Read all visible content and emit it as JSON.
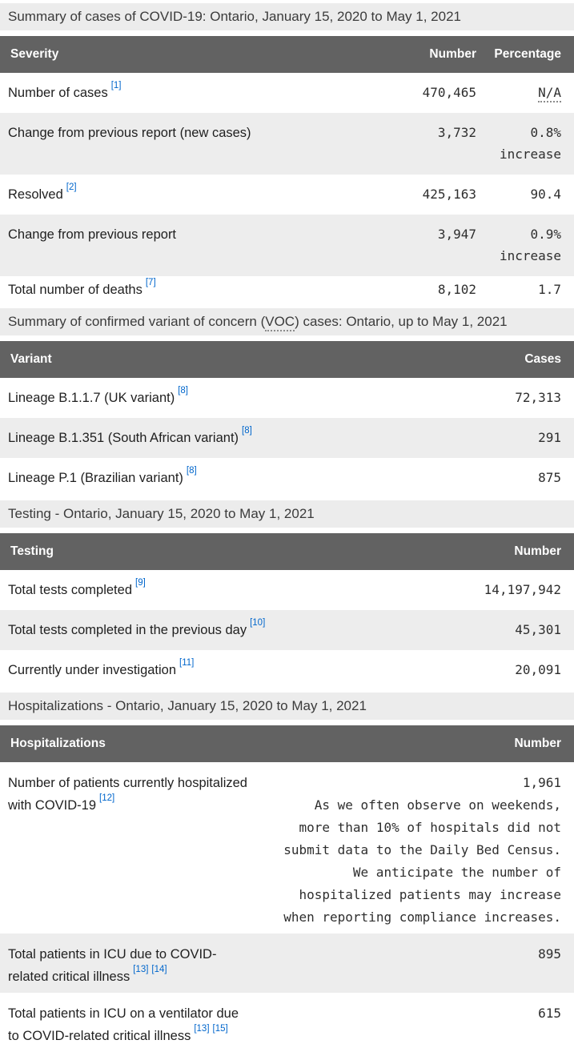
{
  "theme": {
    "link_color": "#0066cc",
    "header_bg": "#626262",
    "caption_bg": "#ececec",
    "row_alt_bg": "#ededed"
  },
  "tables": {
    "severity": {
      "caption": "Summary of cases of COVID-19: Ontario, January 15, 2020 to May 1, 2021",
      "columns": [
        "Severity",
        "Number",
        "Percentage"
      ],
      "rows": [
        {
          "label": "Number of cases",
          "refs": [
            "[1]"
          ],
          "number": "470,465",
          "pct": "N/A"
        },
        {
          "label": "Change from previous report (new cases)",
          "number": "3,732",
          "pct": "0.8%",
          "pct_note": "increase"
        },
        {
          "label": "Resolved",
          "refs": [
            "[2]"
          ],
          "number": "425,163",
          "pct": "90.4"
        },
        {
          "label": "Change from previous report",
          "number": "3,947",
          "pct": "0.9%",
          "pct_note": "increase"
        },
        {
          "label": "Total number of deaths",
          "refs": [
            "[7]"
          ],
          "number": "8,102",
          "pct": "1.7"
        }
      ]
    },
    "variants": {
      "caption_before": "Summary of confirmed variant of concern (",
      "caption_abbr": "VOC",
      "caption_after": ") cases: Ontario, up to May 1, 2021",
      "columns": [
        "Variant",
        "Cases"
      ],
      "rows": [
        {
          "label": "Lineage B.1.1.7 (UK variant)",
          "refs": [
            "[8]"
          ],
          "number": "72,313"
        },
        {
          "label": "Lineage B.1.351 (South African variant)",
          "refs": [
            "[8]"
          ],
          "number": "291"
        },
        {
          "label": "Lineage P.1 (Brazilian variant)",
          "refs": [
            "[8]"
          ],
          "number": "875"
        }
      ]
    },
    "testing": {
      "caption": "Testing - Ontario, January 15, 2020 to May 1, 2021",
      "columns": [
        "Testing",
        "Number"
      ],
      "rows": [
        {
          "label": "Total tests completed",
          "refs": [
            "[9]"
          ],
          "number": "14,197,942"
        },
        {
          "label": "Total tests completed in the previous day",
          "refs": [
            "[10]"
          ],
          "number": "45,301"
        },
        {
          "label": "Currently under investigation",
          "refs": [
            "[11]"
          ],
          "number": "20,091"
        }
      ]
    },
    "hospitalizations": {
      "caption": "Hospitalizations - Ontario, January 15, 2020 to May 1, 2021",
      "columns": [
        "Hospitalizations",
        "Number"
      ],
      "rows": [
        {
          "label": "Number of patients currently hospitalized with COVID-19",
          "refs": [
            "[12]"
          ],
          "number": "1,961",
          "note_lines": [
            "As we often observe on weekends,",
            "more than 10% of hospitals did not",
            "submit data to the Daily Bed Census.",
            "We anticipate the number of",
            "hospitalized patients may increase",
            "when reporting compliance increases."
          ]
        },
        {
          "label": "Total patients in ICU due to COVID-related critical illness",
          "refs": [
            "[13]",
            "[14]"
          ],
          "number": "895"
        },
        {
          "label": "Total patients in ICU on a ventilator due to COVID-related critical illness",
          "refs": [
            "[13]",
            "[15]"
          ],
          "number": "615"
        }
      ]
    }
  }
}
